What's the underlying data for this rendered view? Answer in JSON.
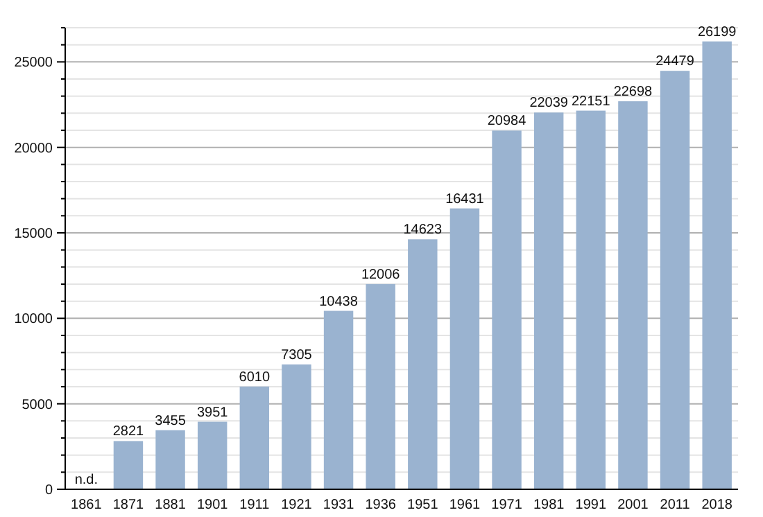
{
  "chart_data": {
    "type": "bar",
    "categories": [
      "1861",
      "1871",
      "1881",
      "1901",
      "1911",
      "1921",
      "1931",
      "1936",
      "1951",
      "1961",
      "1971",
      "1981",
      "1991",
      "2001",
      "2011",
      "2018"
    ],
    "values": [
      null,
      2821,
      3455,
      3951,
      6010,
      7305,
      10438,
      12006,
      14623,
      16431,
      20984,
      22039,
      22151,
      22698,
      24479,
      26199
    ],
    "value_labels": [
      "n.d.",
      "2821",
      "3455",
      "3951",
      "6010",
      "7305",
      "10438",
      "12006",
      "14623",
      "16431",
      "20984",
      "22039",
      "22151",
      "22698",
      "24479",
      "26199"
    ],
    "color": "#9ab3d0",
    "ylim": [
      0,
      27000
    ],
    "yticks": [
      0,
      {
        "value": 1000,
        "label": null
      },
      {
        "value": 2000,
        "label": null
      },
      {
        "value": 3000,
        "label": null
      },
      {
        "value": 4000,
        "label": null
      },
      5000,
      {
        "value": 6000,
        "label": null
      },
      {
        "value": 7000,
        "label": null
      },
      {
        "value": 8000,
        "label": null
      },
      {
        "value": 9000,
        "label": null
      },
      10000,
      {
        "value": 11000,
        "label": null
      },
      {
        "value": 12000,
        "label": null
      },
      {
        "value": 13000,
        "label": null
      },
      {
        "value": 14000,
        "label": null
      },
      15000,
      {
        "value": 16000,
        "label": null
      },
      {
        "value": 17000,
        "label": null
      },
      {
        "value": 18000,
        "label": null
      },
      {
        "value": 19000,
        "label": null
      },
      20000,
      {
        "value": 21000,
        "label": null
      },
      {
        "value": 22000,
        "label": null
      },
      {
        "value": 23000,
        "label": null
      },
      {
        "value": 24000,
        "label": null
      },
      25000,
      {
        "value": 26000,
        "label": null
      },
      {
        "value": 27000,
        "label": null
      }
    ],
    "grid": true
  }
}
